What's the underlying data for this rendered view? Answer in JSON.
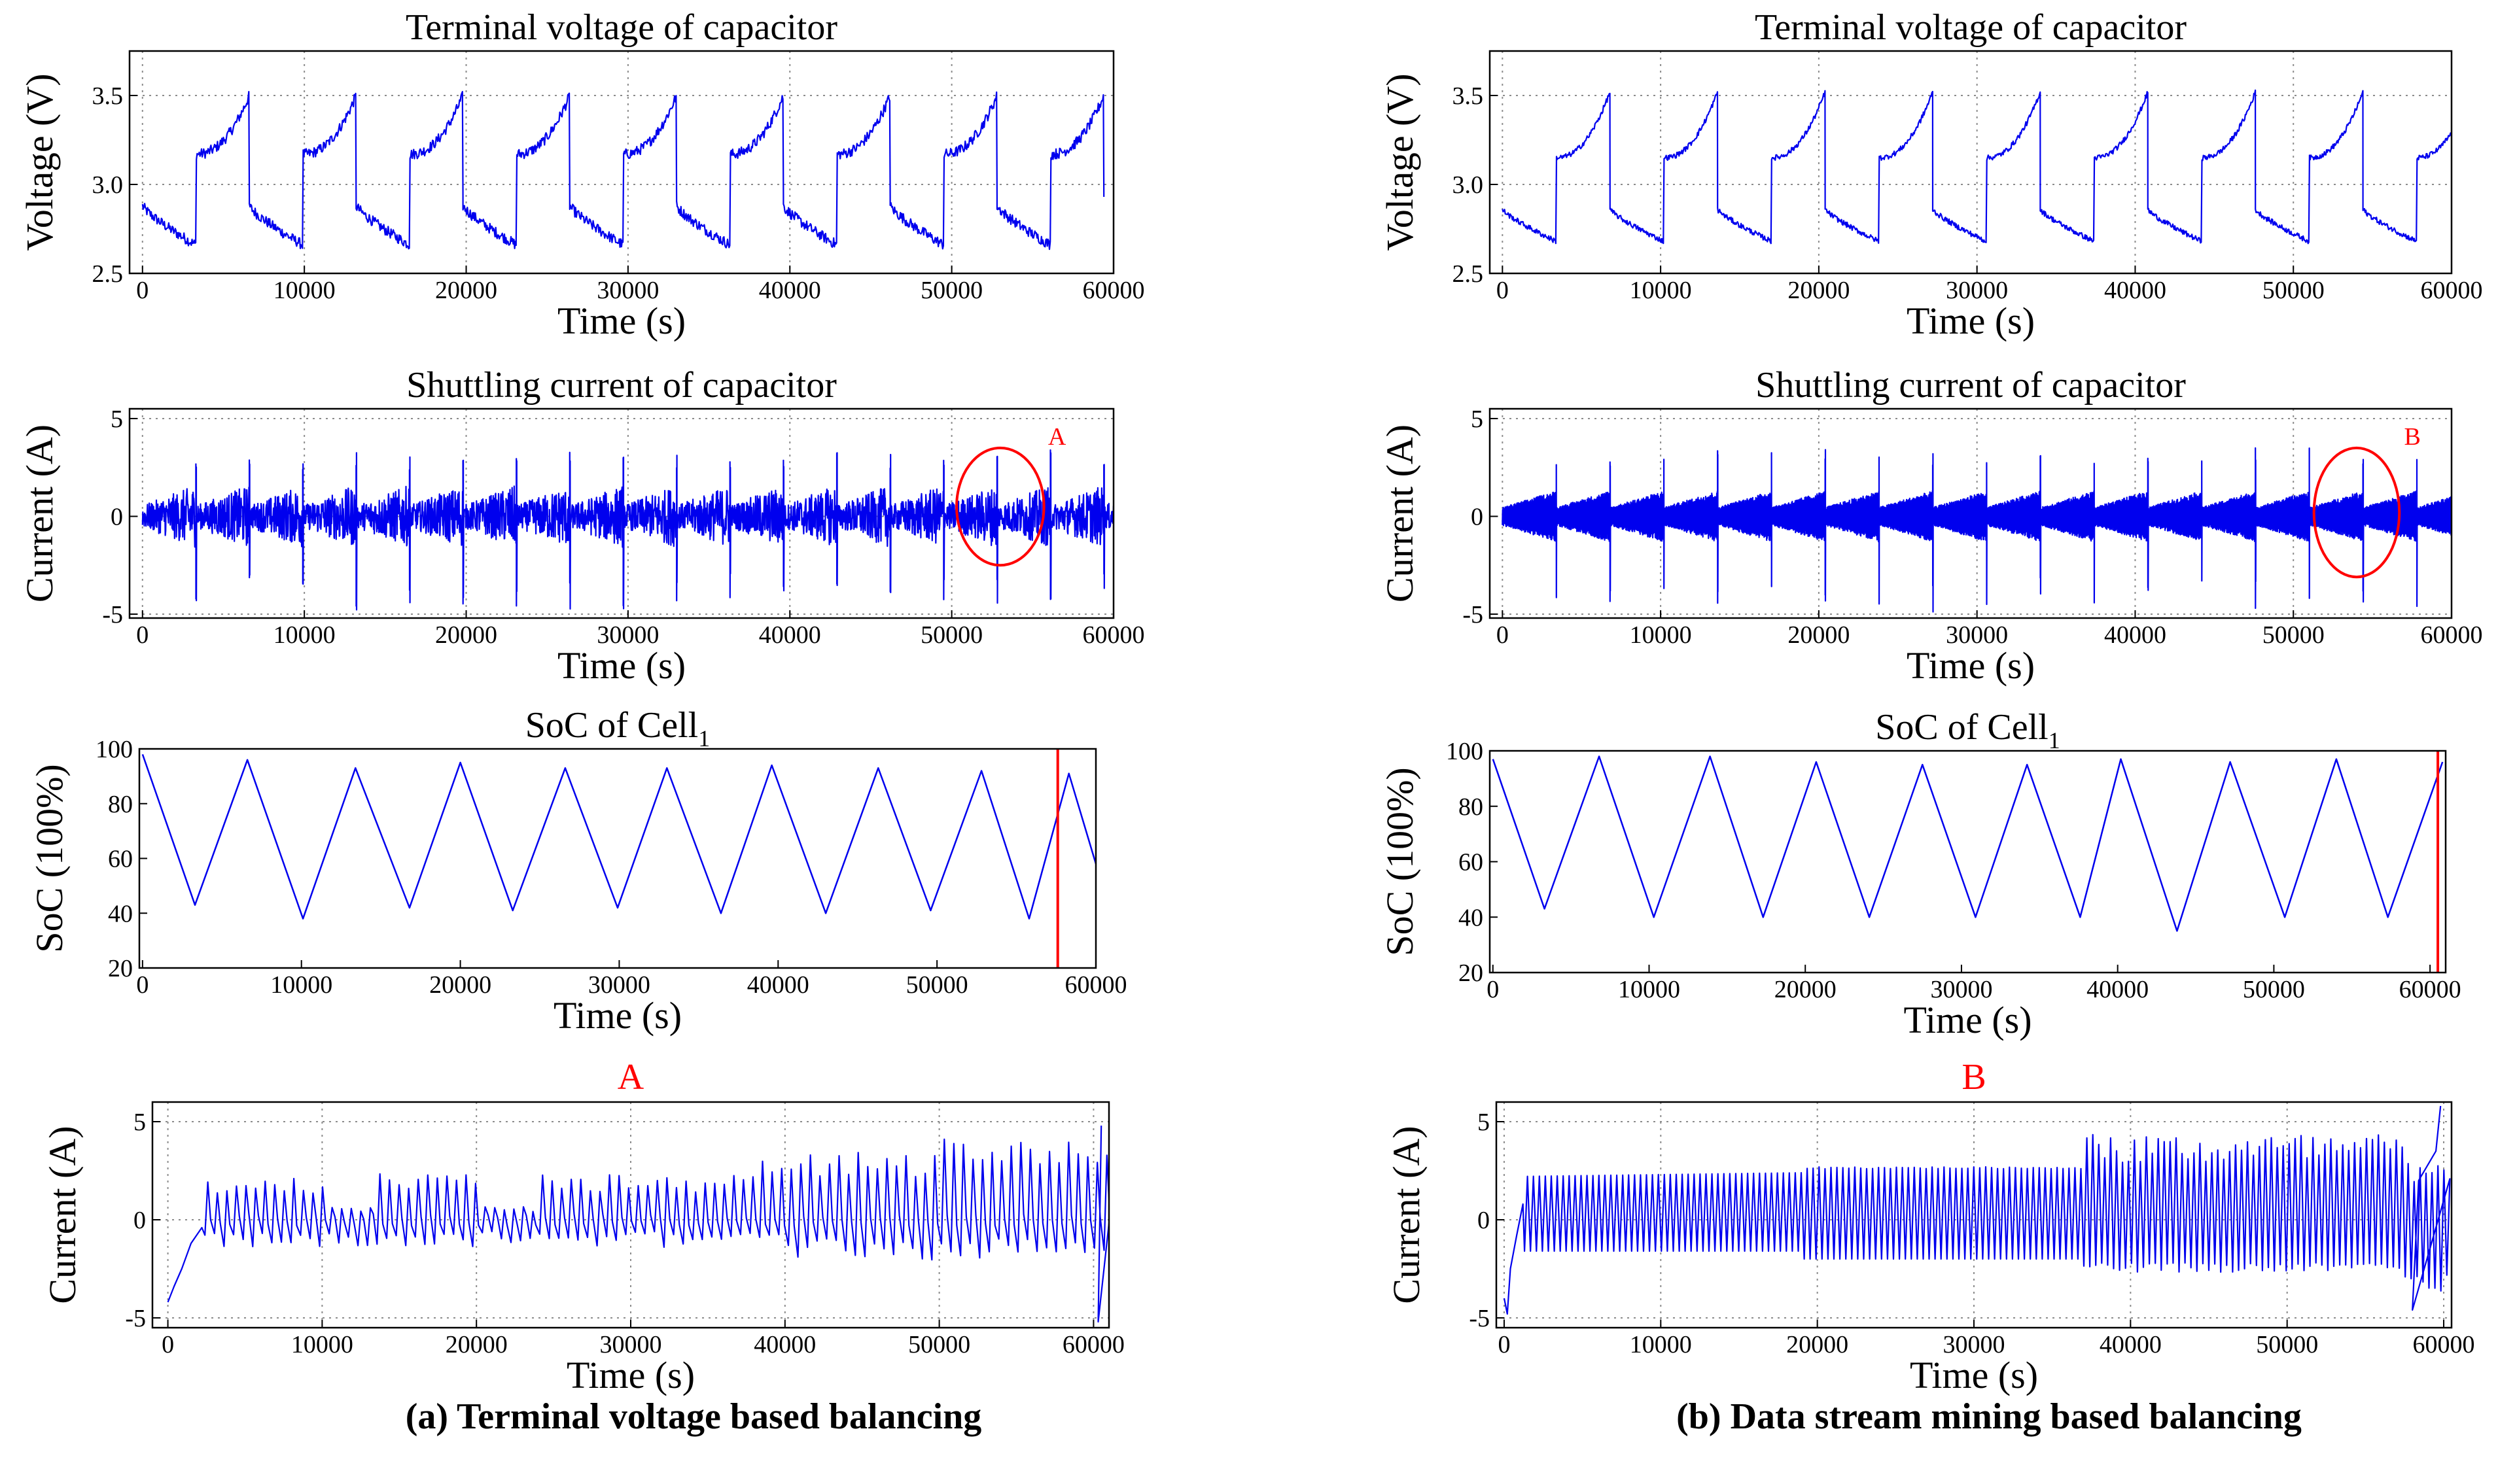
{
  "colors": {
    "line": "#0000ee",
    "marker": "#ff0000",
    "grid": "#8c8c8c",
    "axis": "#000000"
  },
  "captions": {
    "left": "(a) Terminal voltage based balancing",
    "right": "(b) Data stream mining based balancing"
  },
  "chart_data": [
    {
      "id": "a_voltage",
      "type": "line",
      "title": "Terminal voltage of capacitor",
      "xlabel": "Time (s)",
      "ylabel": "Voltage (V)",
      "xlim": [
        -800,
        60000
      ],
      "ylim": [
        2.5,
        3.75
      ],
      "xticks": [
        0,
        10000,
        20000,
        30000,
        40000,
        50000,
        60000
      ],
      "yticks": [
        2.5,
        3.0,
        3.5
      ],
      "ytick_labels": [
        "2.5",
        "3.0",
        "3.5"
      ],
      "grid": true,
      "series": [
        {
          "kind": "sawtooth_cycles",
          "cycle_starts": [
            0,
            6600,
            13200,
            19800,
            26400,
            33000,
            39600,
            46200,
            52800
          ],
          "cycle_period": 6600,
          "rise_fraction": 0.5,
          "low_start": 2.88,
          "low_end": 2.66,
          "high_start": 3.17,
          "high_end": 3.5,
          "noise": 0.03
        }
      ]
    },
    {
      "id": "a_current",
      "type": "line",
      "title": "Shuttling current of capacitor",
      "xlabel": "Time (s)",
      "ylabel": "Current (A)",
      "xlim": [
        -800,
        60000
      ],
      "ylim": [
        -5.2,
        5.5
      ],
      "xticks": [
        0,
        10000,
        20000,
        30000,
        40000,
        50000,
        60000
      ],
      "yticks": [
        -5,
        0,
        5
      ],
      "ytick_labels": [
        "-5",
        "0",
        "5"
      ],
      "grid": true,
      "series": [
        {
          "kind": "noisy_bursts",
          "half_period": 3300,
          "amplitude": 1.6,
          "spike_up": 3.4,
          "spike_down": -4.8,
          "density": 0.6
        }
      ],
      "annotation": {
        "label": "A",
        "x_center": 53000,
        "y_center": 0.5,
        "x_radius": 2700,
        "y_radius": 3.0
      }
    },
    {
      "id": "a_soc",
      "type": "line",
      "title": "SoC of Cell",
      "title_subscript": "1",
      "xlabel": "Time (s)",
      "ylabel": "SoC (100%)",
      "xlim": [
        -200,
        60000
      ],
      "ylim": [
        20,
        100
      ],
      "xticks": [
        0,
        10000,
        20000,
        30000,
        40000,
        50000,
        60000
      ],
      "yticks": [
        20,
        40,
        60,
        80,
        100
      ],
      "ytick_labels": [
        "20",
        "40",
        "60",
        "80",
        "100"
      ],
      "grid": false,
      "series": [
        {
          "kind": "polyline",
          "x": [
            0,
            3300,
            6600,
            10100,
            13400,
            16800,
            20000,
            23300,
            26600,
            29900,
            33000,
            36400,
            39600,
            43000,
            46300,
            49600,
            52800,
            55800,
            58300,
            60000
          ],
          "y": [
            98,
            43,
            96,
            38,
            93,
            42,
            95,
            41,
            93,
            42,
            93,
            40,
            94,
            40,
            93,
            41,
            92,
            38,
            91,
            58
          ]
        }
      ],
      "marker_x": 57600
    },
    {
      "id": "a_zoom",
      "type": "line",
      "title": "A",
      "xlabel": "Time (s)",
      "ylabel": "Current (A)",
      "xlim": [
        -1000,
        61000
      ],
      "ylim": [
        -5.5,
        6
      ],
      "xticks": [
        0,
        10000,
        20000,
        30000,
        40000,
        50000,
        60000
      ],
      "yticks": [
        -5,
        0,
        5
      ],
      "ytick_labels": [
        "-5",
        "0",
        "5"
      ],
      "grid": true,
      "series": [
        {
          "kind": "zoom_a",
          "period": 620
        }
      ]
    },
    {
      "id": "b_voltage",
      "type": "line",
      "title": "Terminal voltage of capacitor",
      "xlabel": "Time (s)",
      "ylabel": "Voltage (V)",
      "xlim": [
        -800,
        60000
      ],
      "ylim": [
        2.5,
        3.75
      ],
      "xticks": [
        0,
        10000,
        20000,
        30000,
        40000,
        50000,
        60000
      ],
      "yticks": [
        2.5,
        3.0,
        3.5
      ],
      "ytick_labels": [
        "2.5",
        "3.0",
        "3.5"
      ],
      "grid": true,
      "series": [
        {
          "kind": "sawtooth_cycles",
          "cycle_starts": [
            0,
            6800,
            13600,
            20400,
            27200,
            34000,
            40800,
            47600,
            54400
          ],
          "cycle_period": 6800,
          "rise_fraction": 0.5,
          "low_start": 2.86,
          "low_end": 2.68,
          "high_start": 3.15,
          "high_end": 3.52,
          "noise": 0.015
        }
      ]
    },
    {
      "id": "b_current",
      "type": "line",
      "title": "Shuttling current of capacitor",
      "xlabel": "Time (s)",
      "ylabel": "Current (A)",
      "xlim": [
        -800,
        60000
      ],
      "ylim": [
        -5.2,
        5.5
      ],
      "xticks": [
        0,
        10000,
        20000,
        30000,
        40000,
        50000,
        60000
      ],
      "yticks": [
        -5,
        0,
        5
      ],
      "ytick_labels": [
        "-5",
        "0",
        "5"
      ],
      "grid": true,
      "series": [
        {
          "kind": "dense_bursts",
          "half_period": 3400,
          "amplitude": 1.3,
          "spike_up": 3.5,
          "spike_down": -4.9
        }
      ],
      "annotation": {
        "label": "B",
        "x_center": 54000,
        "y_center": 0.2,
        "x_radius": 2700,
        "y_radius": 3.3
      }
    },
    {
      "id": "b_soc",
      "type": "line",
      "title": "SoC of Cell",
      "title_subscript": "1",
      "xlabel": "Time (s)",
      "ylabel": "SoC (100%)",
      "xlim": [
        -200,
        61000
      ],
      "ylim": [
        20,
        100
      ],
      "xticks": [
        0,
        10000,
        20000,
        30000,
        40000,
        50000,
        60000
      ],
      "yticks": [
        20,
        40,
        60,
        80,
        100
      ],
      "ytick_labels": [
        "20",
        "40",
        "60",
        "80",
        "100"
      ],
      "grid": false,
      "series": [
        {
          "kind": "polyline",
          "x": [
            0,
            3300,
            6800,
            10300,
            13900,
            17300,
            20700,
            24100,
            27500,
            30900,
            34200,
            37600,
            40200,
            43800,
            47200,
            50700,
            54000,
            57300,
            60800
          ],
          "y": [
            97,
            43,
            98,
            40,
            98,
            40,
            96,
            40,
            95,
            40,
            95,
            40,
            97,
            35,
            96,
            40,
            97,
            40,
            96
          ]
        }
      ],
      "marker_x": 60500
    },
    {
      "id": "b_zoom",
      "type": "line",
      "title": "B",
      "xlabel": "Time (s)",
      "ylabel": "Current (A)",
      "xlim": [
        -500,
        60500
      ],
      "ylim": [
        -5.5,
        6
      ],
      "xticks": [
        0,
        10000,
        20000,
        30000,
        40000,
        50000,
        60000
      ],
      "yticks": [
        -5,
        0,
        5
      ],
      "ytick_labels": [
        "-5",
        "0",
        "5"
      ],
      "grid": true,
      "series": [
        {
          "kind": "zoom_b",
          "period": 380
        }
      ]
    }
  ]
}
